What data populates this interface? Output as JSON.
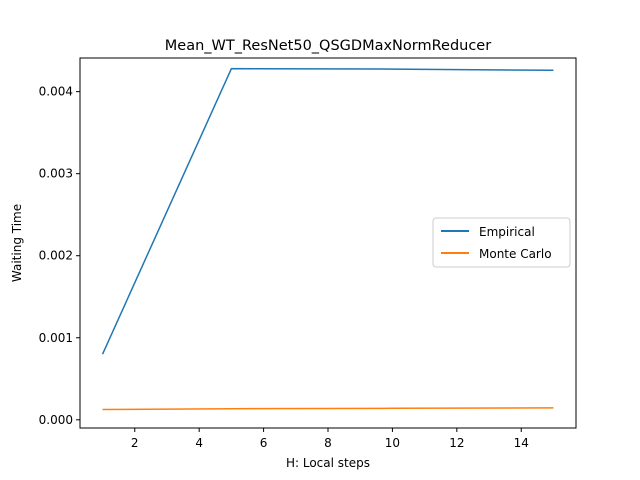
{
  "chart_data": {
    "type": "line",
    "title": "Mean_WT_ResNet50_QSGDMaxNormReducer",
    "xlabel": "H: Local steps",
    "ylabel": "Waiting Time",
    "x": [
      1,
      5,
      10,
      15
    ],
    "xlim": [
      0.3,
      15.7
    ],
    "ylim": [
      -0.0001,
      0.00441
    ],
    "xticks": [
      2,
      4,
      6,
      8,
      10,
      12,
      14
    ],
    "yticks": [
      0.0,
      0.001,
      0.002,
      0.003,
      0.004
    ],
    "ytick_labels": [
      "0.000",
      "0.001",
      "0.002",
      "0.003",
      "0.004"
    ],
    "grid": false,
    "legend_position": "center-right",
    "series": [
      {
        "name": "Empirical",
        "color": "#1f77b4",
        "values": [
          0.0008,
          0.00428,
          0.004275,
          0.00426
        ]
      },
      {
        "name": "Monte Carlo",
        "color": "#ff7f0e",
        "values": [
          0.000125,
          0.000135,
          0.00014,
          0.000145
        ]
      }
    ]
  }
}
